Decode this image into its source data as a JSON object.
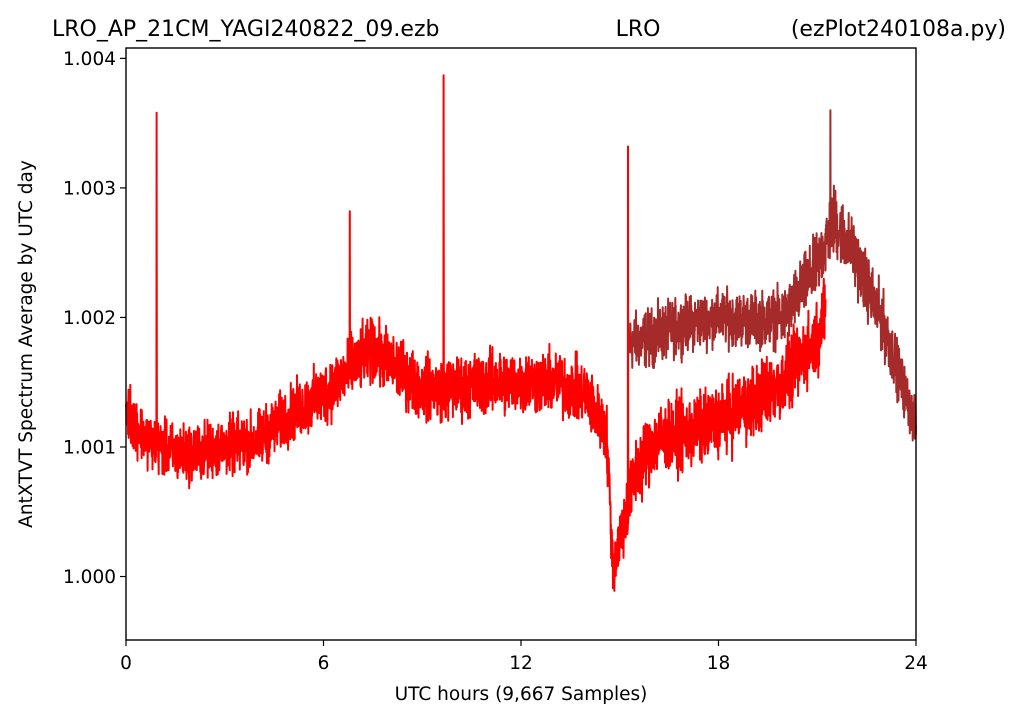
{
  "header": {
    "file_name": "LRO_AP_21CM_YAGI240822_09.ezb",
    "station": "LRO",
    "script_name": "(ezPlot240108a.py)"
  },
  "chart_data": {
    "type": "line",
    "xlabel": "UTC hours  (9,667 Samples)",
    "ylabel": "AntXTVT Spectrum Average by UTC day",
    "xlim": [
      0,
      24
    ],
    "ylim": [
      0.99951,
      1.00408
    ],
    "x_ticks": [
      0,
      6,
      12,
      18,
      24
    ],
    "x_tick_labels": [
      "0",
      "6",
      "12",
      "18",
      "24"
    ],
    "y_ticks": [
      1.0,
      1.001,
      1.002,
      1.003,
      1.004
    ],
    "y_tick_labels": [
      "1.000",
      "1.001",
      "1.002",
      "1.003",
      "1.004"
    ],
    "grid": false,
    "series": [
      {
        "color": "#a52a2a",
        "x": [
          15.25,
          16,
          17,
          18,
          19,
          20,
          21,
          21.5,
          22,
          23,
          24
        ],
        "mid": [
          1.0018,
          1.00185,
          1.00195,
          1.002,
          1.00198,
          1.002,
          1.0024,
          1.00275,
          1.00255,
          1.00195,
          1.00115
        ],
        "amp": [
          0.00032,
          0.00032,
          0.0003,
          0.0003,
          0.0003,
          0.00032,
          0.00035,
          0.0004,
          0.00035,
          0.00035,
          0.00025
        ],
        "spikes": [
          [
            21.4,
            1.0036
          ]
        ]
      },
      {
        "color": "#ff0000",
        "x": [
          0,
          0.5,
          1,
          1.5,
          2,
          3,
          4,
          5,
          6,
          7,
          7.5,
          8,
          9,
          10,
          11,
          12,
          13,
          14,
          14.6,
          14.8,
          15,
          15.5,
          16,
          17,
          18,
          19,
          20,
          21,
          21.25
        ],
        "mid": [
          1.0013,
          1.0011,
          1.001,
          1.00095,
          1.00095,
          1.001,
          1.00105,
          1.00125,
          1.0014,
          1.00165,
          1.00175,
          1.00165,
          1.00145,
          1.00145,
          1.0015,
          1.0015,
          1.0015,
          1.0014,
          1.0011,
          1.00005,
          1.0003,
          1.0008,
          1.00105,
          1.0011,
          1.0012,
          1.00135,
          1.0015,
          1.00185,
          1.00205
        ],
        "amp": [
          0.00035,
          0.0003,
          0.0003,
          0.00032,
          0.00032,
          0.00032,
          0.00032,
          0.00032,
          0.00035,
          0.00035,
          0.00035,
          0.00035,
          0.00035,
          0.00035,
          0.00035,
          0.00035,
          0.00035,
          0.00035,
          0.00035,
          0.0003,
          0.00035,
          0.0004,
          0.0004,
          0.0004,
          0.0004,
          0.0004,
          0.0004,
          0.0004,
          0.0004
        ],
        "spikes": [
          [
            0.93,
            1.00358
          ],
          [
            9.65,
            1.00387
          ],
          [
            15.25,
            1.00332
          ],
          [
            6.8,
            1.00282
          ]
        ]
      }
    ]
  }
}
